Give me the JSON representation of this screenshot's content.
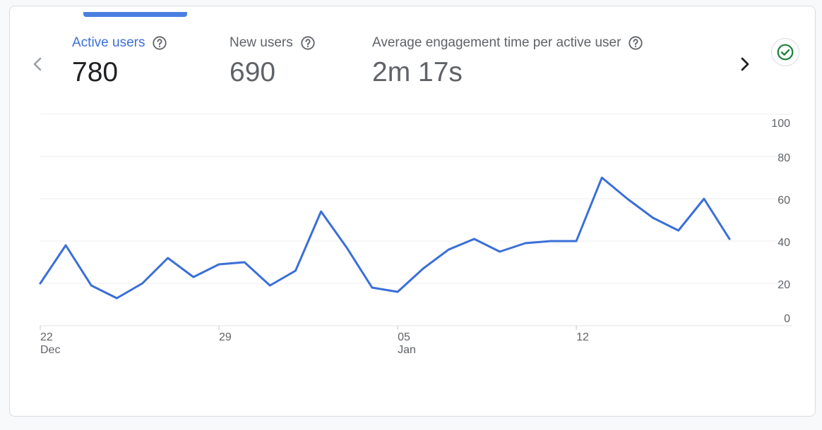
{
  "metrics": [
    {
      "label": "Active users",
      "value": "780"
    },
    {
      "label": "New users",
      "value": "690"
    },
    {
      "label": "Average engagement time per active user",
      "value": "2m 17s"
    }
  ],
  "colors": {
    "accent": "#3b6fd8",
    "line": "#3a6fd8",
    "success": "#188038"
  },
  "chart_data": {
    "type": "line",
    "title": "",
    "xlabel": "",
    "ylabel": "",
    "ylim": [
      0,
      100
    ],
    "y_ticks": [
      0,
      20,
      40,
      60,
      80,
      100
    ],
    "y_tick_labels": [
      "0",
      "20",
      "40",
      "60",
      "80",
      "100"
    ],
    "x_tick_labels": [
      {
        "index": 0,
        "day": "22",
        "month": "Dec"
      },
      {
        "index": 7,
        "day": "29",
        "month": ""
      },
      {
        "index": 14,
        "day": "05",
        "month": "Jan"
      },
      {
        "index": 21,
        "day": "12",
        "month": ""
      }
    ],
    "series": [
      {
        "name": "Active users",
        "values": [
          20,
          38,
          19,
          13,
          20,
          32,
          23,
          29,
          30,
          19,
          26,
          54,
          37,
          18,
          16,
          27,
          36,
          41,
          35,
          39,
          40,
          40,
          70,
          60,
          51,
          45,
          60,
          41
        ]
      }
    ],
    "grid": true
  }
}
